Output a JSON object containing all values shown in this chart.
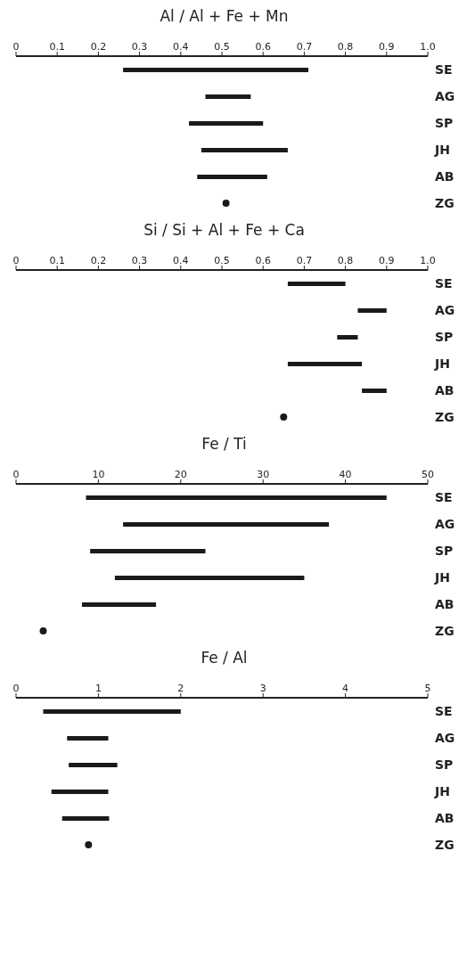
{
  "chart_data": [
    {
      "type": "bar",
      "orientation": "horizontal",
      "title": "Al / Al + Fe + Mn",
      "categories": [
        "SE",
        "AG",
        "SP",
        "JH",
        "AB",
        "ZG"
      ],
      "series": [
        {
          "color": "#1a1a1a",
          "base": [
            0.26,
            0.46,
            0.42,
            0.45,
            0.44,
            null
          ],
          "values": [
            0.45,
            0.11,
            0.18,
            0.21,
            0.17,
            null
          ]
        },
        {
          "type": "scatter",
          "color": "#1a1a1a",
          "values": [
            null,
            null,
            null,
            null,
            null,
            0.51
          ]
        }
      ],
      "xlim": [
        0,
        1
      ],
      "xticks": [
        0,
        0.1,
        0.2,
        0.3,
        0.4,
        0.5,
        0.6,
        0.7,
        0.8,
        0.9,
        {
          "value": 1,
          "label": "1.0"
        }
      ],
      "marker": "circle",
      "grid": false
    },
    {
      "type": "bar",
      "orientation": "horizontal",
      "title": "Si / Si + Al + Fe + Ca",
      "categories": [
        "SE",
        "AG",
        "SP",
        "JH",
        "AB",
        "ZG"
      ],
      "series": [
        {
          "color": "#1a1a1a",
          "base": [
            0.66,
            0.83,
            0.78,
            0.66,
            0.84,
            null
          ],
          "values": [
            0.14,
            0.07,
            0.05,
            0.18,
            0.06,
            null
          ]
        },
        {
          "type": "scatter",
          "color": "#1a1a1a",
          "values": [
            null,
            null,
            null,
            null,
            null,
            0.65
          ]
        }
      ],
      "xlim": [
        0,
        1
      ],
      "xticks": [
        0,
        0.1,
        0.2,
        0.3,
        0.4,
        0.5,
        0.6,
        0.7,
        0.8,
        0.9,
        {
          "value": 1,
          "label": "1.0"
        }
      ],
      "marker": "circle",
      "grid": false
    },
    {
      "type": "bar",
      "orientation": "horizontal",
      "title": "Fe / Ti",
      "categories": [
        "SE",
        "AG",
        "SP",
        "JH",
        "AB",
        "ZG"
      ],
      "series": [
        {
          "color": "#1a1a1a",
          "base": [
            8.5,
            13,
            9,
            12,
            8,
            null
          ],
          "values": [
            36.5,
            25,
            14,
            23,
            9,
            null
          ]
        },
        {
          "type": "scatter",
          "color": "#1a1a1a",
          "values": [
            null,
            null,
            null,
            null,
            null,
            3.3
          ]
        }
      ],
      "xlim": [
        0,
        50
      ],
      "xticks": [
        0,
        10,
        20,
        30,
        40,
        50
      ],
      "marker": "circle",
      "grid": false
    },
    {
      "type": "bar",
      "orientation": "horizontal",
      "title": "Fe / Al",
      "categories": [
        "SE",
        "AG",
        "SP",
        "JH",
        "AB",
        "ZG"
      ],
      "series": [
        {
          "color": "#1a1a1a",
          "base": [
            0.33,
            0.62,
            0.64,
            0.43,
            0.56,
            null
          ],
          "values": [
            1.67,
            0.5,
            0.59,
            0.69,
            0.57,
            null
          ]
        },
        {
          "type": "scatter",
          "color": "#1a1a1a",
          "values": [
            null,
            null,
            null,
            null,
            null,
            0.88
          ]
        }
      ],
      "xlim": [
        0,
        5
      ],
      "xticks": [
        0,
        1,
        2,
        3,
        4,
        5
      ],
      "marker": "circle",
      "grid": false
    }
  ]
}
